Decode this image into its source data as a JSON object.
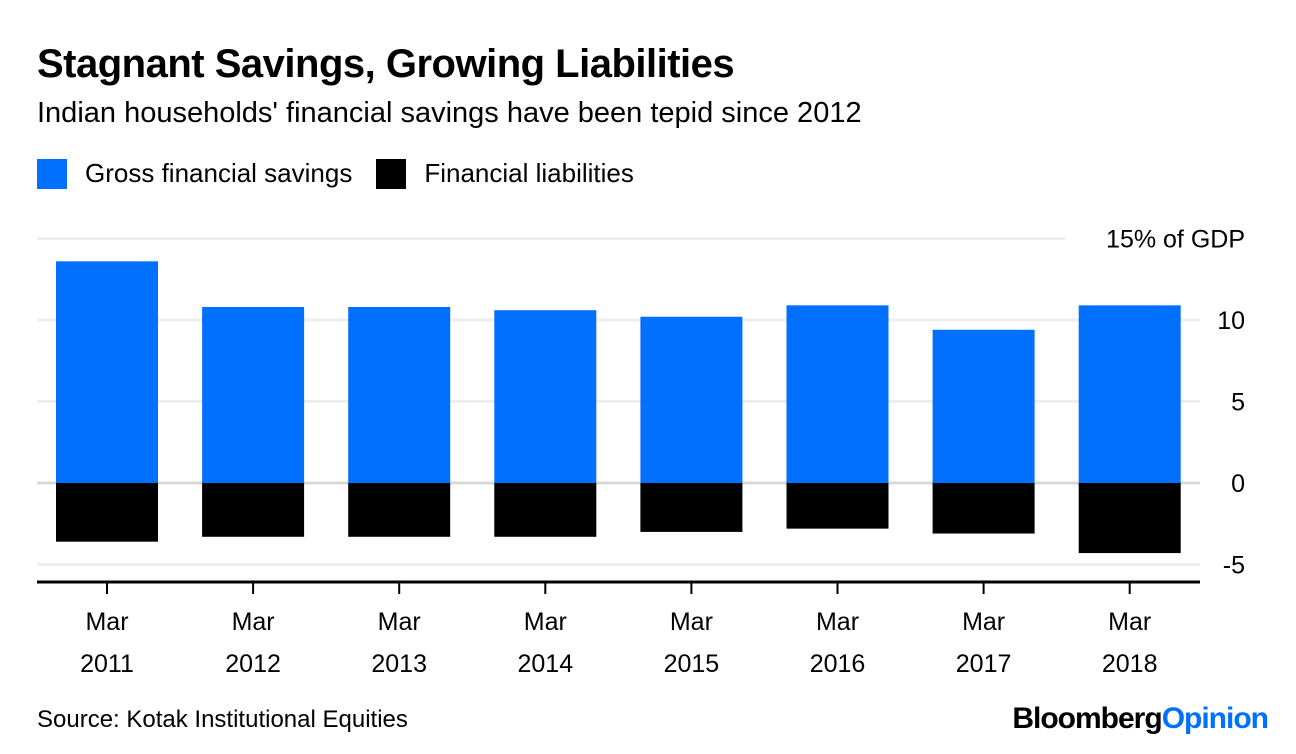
{
  "chart_data": {
    "type": "bar",
    "title": "Stagnant Savings, Growing Liabilities",
    "subtitle": "Indian households' financial savings have been tepid since 2012",
    "categories": [
      [
        "Mar",
        "2011"
      ],
      [
        "Mar",
        "2012"
      ],
      [
        "Mar",
        "2013"
      ],
      [
        "Mar",
        "2014"
      ],
      [
        "Mar",
        "2015"
      ],
      [
        "Mar",
        "2016"
      ],
      [
        "Mar",
        "2017"
      ],
      [
        "Mar",
        "2018"
      ]
    ],
    "series": [
      {
        "name": "Gross financial savings",
        "color": "#0270ff",
        "values": [
          13.6,
          10.8,
          10.8,
          10.6,
          10.2,
          10.9,
          9.4,
          10.9
        ]
      },
      {
        "name": "Financial liabilities",
        "color": "#000000",
        "values": [
          -3.6,
          -3.3,
          -3.3,
          -3.3,
          -3.0,
          -2.8,
          -3.1,
          -4.3
        ]
      }
    ],
    "ylim": [
      -5,
      15
    ],
    "yticks": [
      {
        "v": 15,
        "label": "15% of GDP"
      },
      {
        "v": 10,
        "label": "10"
      },
      {
        "v": 5,
        "label": "5"
      },
      {
        "v": 0,
        "label": "0"
      },
      {
        "v": -5,
        "label": "-5"
      }
    ],
    "grid": true,
    "legend_position": "top-left",
    "source": "Source: Kotak Institutional Equities"
  },
  "logo": {
    "part1": "Bloomberg",
    "part2": "Opinion",
    "accent": "#0270ff"
  }
}
